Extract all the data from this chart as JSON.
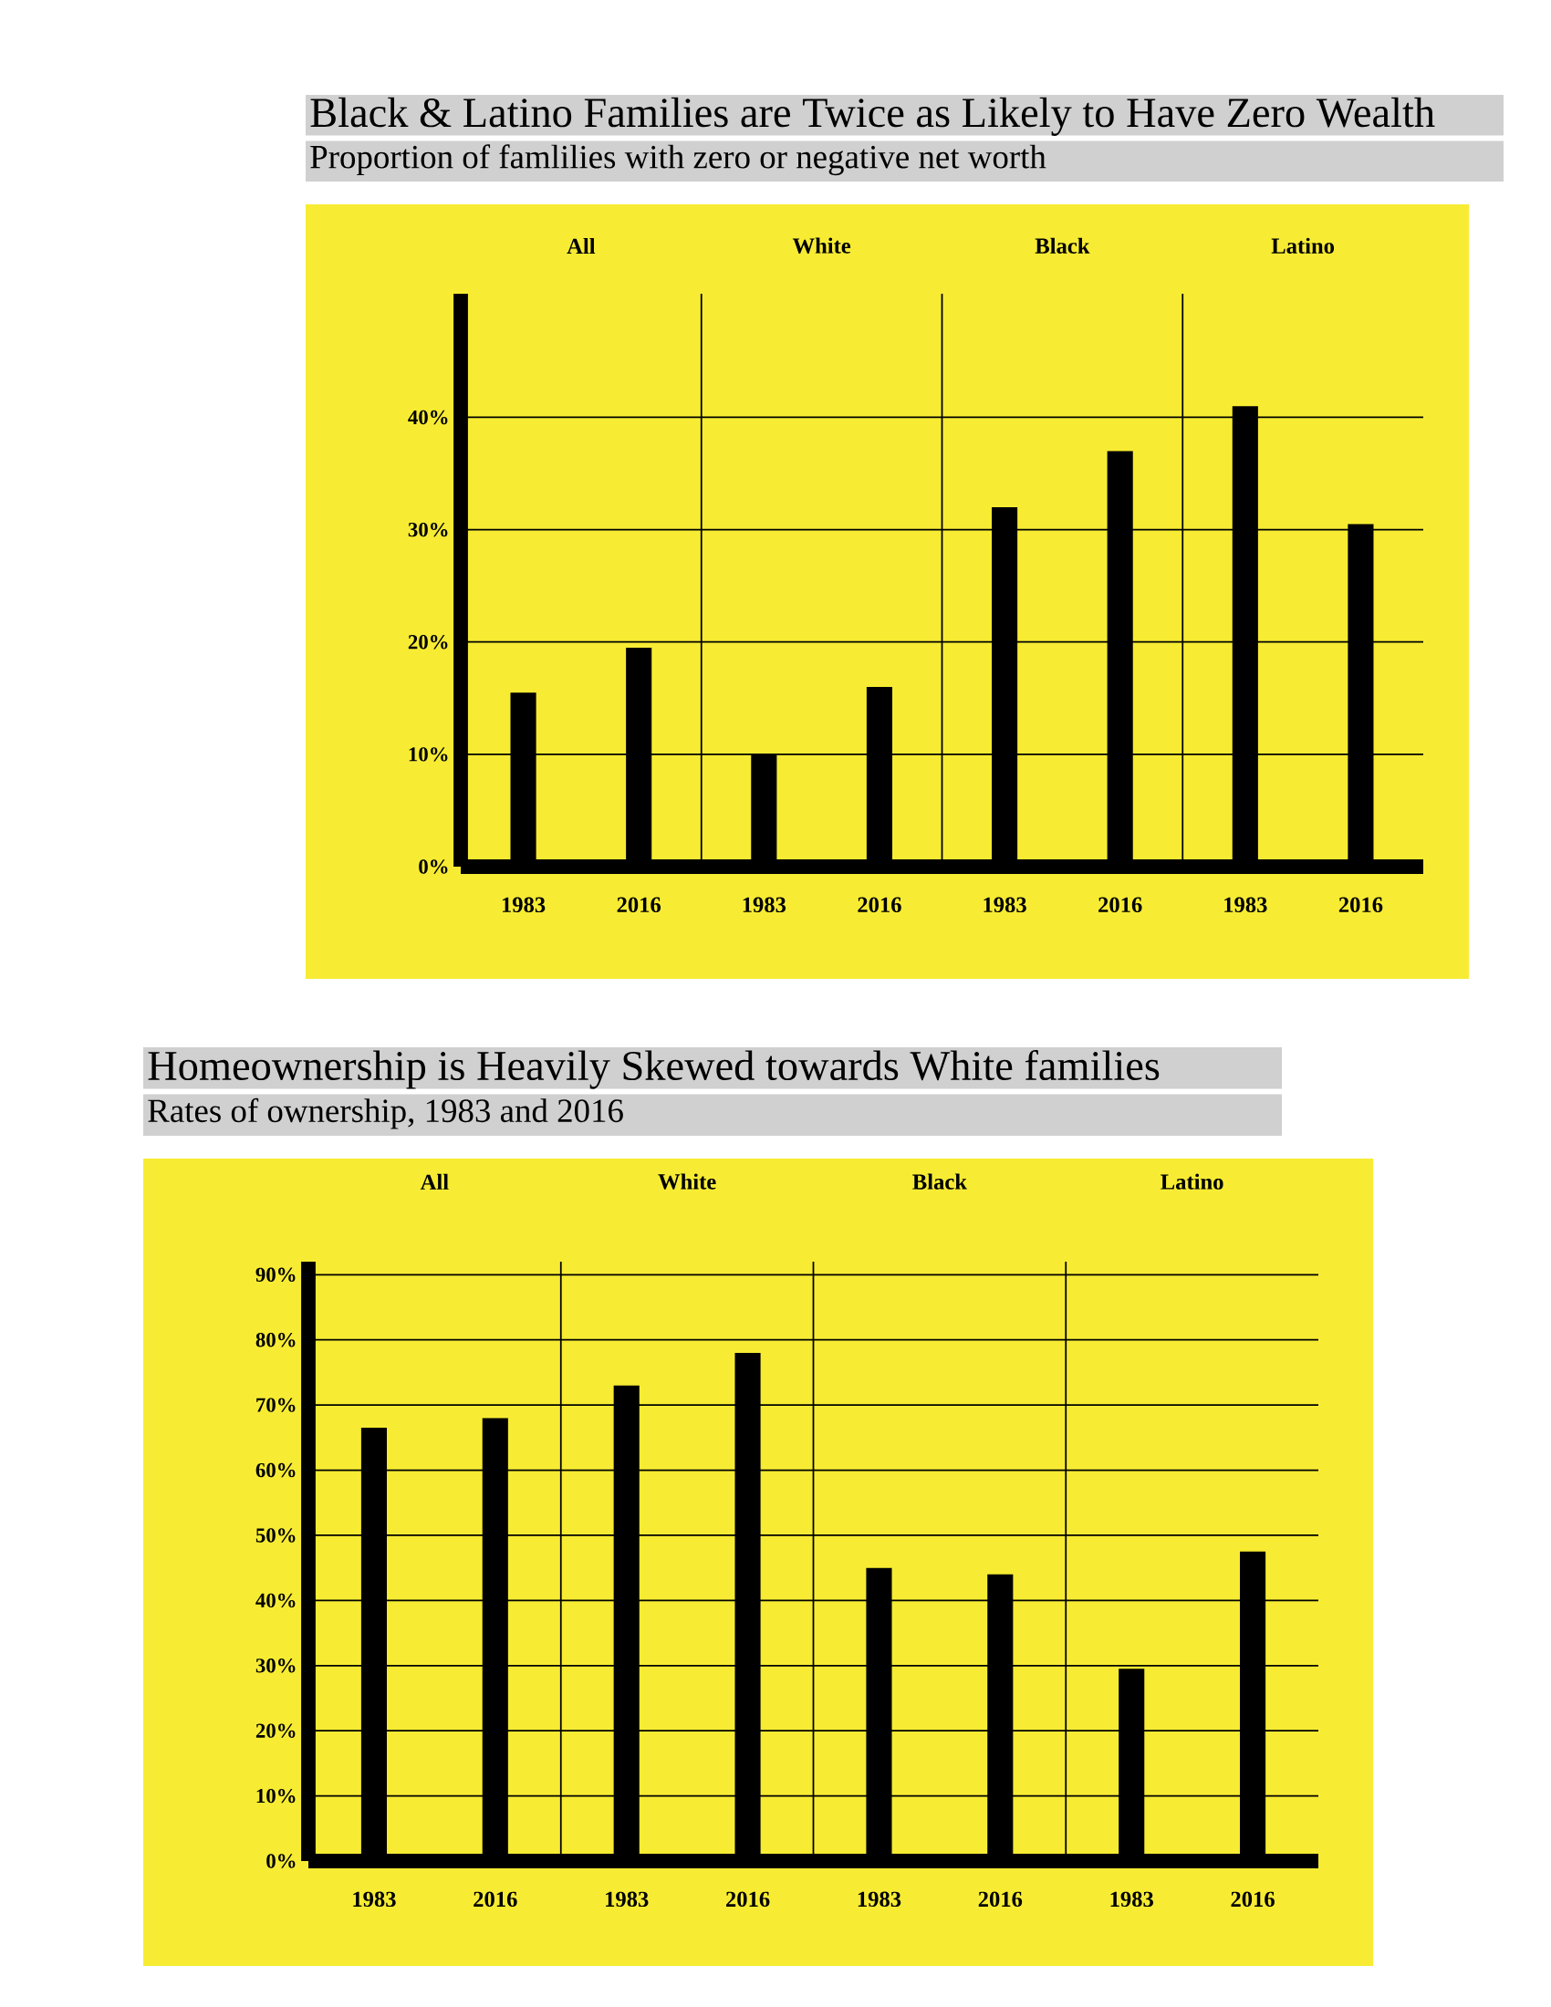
{
  "chart_data": [
    {
      "type": "bar",
      "title": "Black & Latino Families are Twice as Likely to Have Zero Wealth",
      "subtitle": "Proportion of famlilies with zero or negative net worth",
      "categories": [
        "All",
        "White",
        "Black",
        "Latino"
      ],
      "series": [
        {
          "name": "1983",
          "color": "#000000",
          "values": [
            15.5,
            10,
            32,
            41
          ]
        },
        {
          "name": "2016",
          "color": "#000000",
          "values": [
            19.5,
            16,
            37,
            30.5
          ]
        }
      ],
      "ylim": [
        0,
        51
      ],
      "yticks": [
        {
          "value": 0,
          "label": "0%"
        },
        {
          "value": 10,
          "label": "10%"
        },
        {
          "value": 20,
          "label": "20%"
        },
        {
          "value": 30,
          "label": "30%"
        },
        {
          "value": 40,
          "label": "40%"
        }
      ],
      "grid": true
    },
    {
      "type": "bar",
      "title": "Homeownership is Heavily Skewed towards White families",
      "subtitle": "Rates of ownership, 1983 and 2016",
      "categories": [
        "All",
        "White",
        "Black",
        "Latino"
      ],
      "series": [
        {
          "name": "1983",
          "color": "#000000",
          "values": [
            66.5,
            73,
            45,
            29.5
          ]
        },
        {
          "name": "2016",
          "color": "#000000",
          "values": [
            68,
            78,
            44,
            47.5
          ]
        }
      ],
      "ylim": [
        0,
        92
      ],
      "yticks": [
        {
          "value": 0,
          "label": "0%"
        },
        {
          "value": 10,
          "label": "10%"
        },
        {
          "value": 20,
          "label": "20%"
        },
        {
          "value": 30,
          "label": "30%"
        },
        {
          "value": 40,
          "label": "40%"
        },
        {
          "value": 50,
          "label": "50%"
        },
        {
          "value": 60,
          "label": "60%"
        },
        {
          "value": 70,
          "label": "70%"
        },
        {
          "value": 80,
          "label": "80%"
        },
        {
          "value": 90,
          "label": "90%"
        }
      ],
      "grid": true
    }
  ]
}
